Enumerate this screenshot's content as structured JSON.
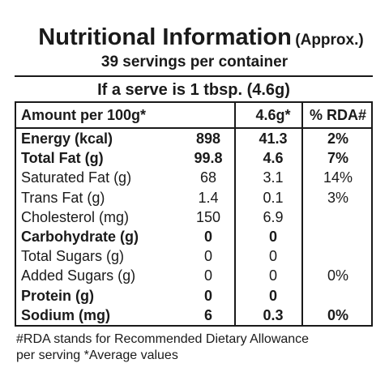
{
  "title": {
    "main": "Nutritional Information",
    "sub": "(Approx.)"
  },
  "servings": "39 servings per container",
  "serve_size": "If a serve is 1 tbsp. (4.6g)",
  "table": {
    "headers": [
      "Amount per 100g*",
      "4.6g*",
      "% RDA#"
    ],
    "rows": [
      {
        "label": "Energy (kcal)",
        "per100": "898",
        "perServe": "41.3",
        "rda": "2%",
        "bold": true
      },
      {
        "label": "Total Fat (g)",
        "per100": "99.8",
        "perServe": "4.6",
        "rda": "7%",
        "bold": true
      },
      {
        "label": "Saturated Fat (g)",
        "per100": "68",
        "perServe": "3.1",
        "rda": "14%",
        "bold": false
      },
      {
        "label": "Trans Fat (g)",
        "per100": "1.4",
        "perServe": "0.1",
        "rda": "3%",
        "bold": false
      },
      {
        "label": "Cholesterol (mg)",
        "per100": "150",
        "perServe": "6.9",
        "rda": "",
        "bold": false
      },
      {
        "label": "Carbohydrate (g)",
        "per100": "0",
        "perServe": "0",
        "rda": "",
        "bold": true
      },
      {
        "label": "Total Sugars (g)",
        "per100": "0",
        "perServe": "0",
        "rda": "",
        "bold": false
      },
      {
        "label": "Added Sugars (g)",
        "per100": "0",
        "perServe": "0",
        "rda": "0%",
        "bold": false
      },
      {
        "label": "Protein (g)",
        "per100": "0",
        "perServe": "0",
        "rda": "",
        "bold": true
      },
      {
        "label": "Sodium (mg)",
        "per100": "6",
        "perServe": "0.3",
        "rda": "0%",
        "bold": true
      }
    ]
  },
  "footnote": {
    "line1": "#RDA stands for Recommended Dietary Allowance",
    "line2": "per serving *Average values"
  }
}
